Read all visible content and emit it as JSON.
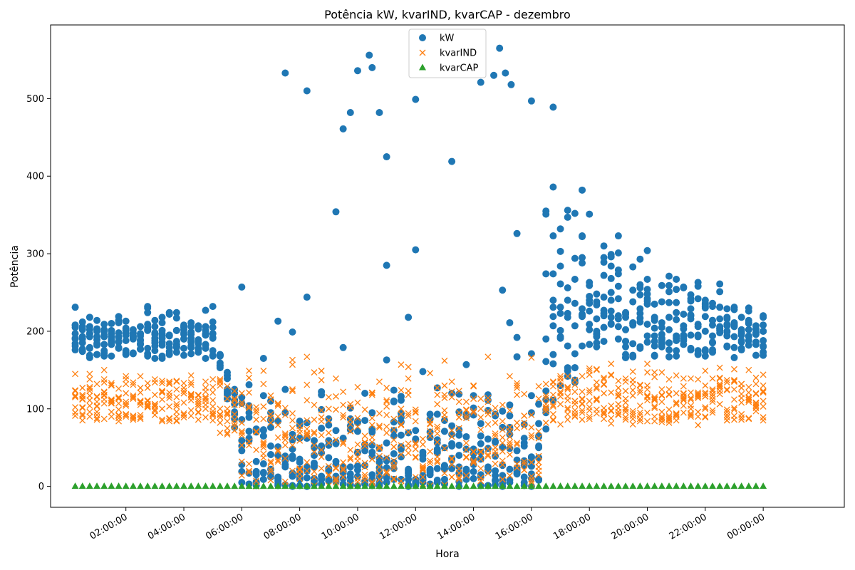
{
  "chart_data": {
    "type": "scatter",
    "title": "Potência kW, kvarIND, kvarCAP - dezembro",
    "xlabel": "Hora",
    "ylabel": "Potência",
    "xlim_hours": [
      -0.6,
      26.8
    ],
    "ylim": [
      -27,
      595
    ],
    "y_ticks": [
      0,
      100,
      200,
      300,
      400,
      500
    ],
    "x_ticks": [
      {
        "hour": 2,
        "label": "02:00:00"
      },
      {
        "hour": 4,
        "label": "04:00:00"
      },
      {
        "hour": 6,
        "label": "06:00:00"
      },
      {
        "hour": 8,
        "label": "08:00:00"
      },
      {
        "hour": 10,
        "label": "10:00:00"
      },
      {
        "hour": 12,
        "label": "12:00:00"
      },
      {
        "hour": 14,
        "label": "14:00:00"
      },
      {
        "hour": 16,
        "label": "16:00:00"
      },
      {
        "hour": 18,
        "label": "18:00:00"
      },
      {
        "hour": 20,
        "label": "20:00:00"
      },
      {
        "hour": 22,
        "label": "22:00:00"
      },
      {
        "hour": 24,
        "label": "00:00:00"
      }
    ],
    "grid": false,
    "legend_position": "top-center",
    "series": [
      {
        "name": "kW",
        "marker": "circle",
        "color": "#1f77b4",
        "points": []
      },
      {
        "name": "kvarIND",
        "marker": "x",
        "color": "#ff7f0e",
        "points": []
      },
      {
        "name": "kvarCAP",
        "marker": "triangle",
        "color": "#2ca02c",
        "points": []
      }
    ]
  }
}
